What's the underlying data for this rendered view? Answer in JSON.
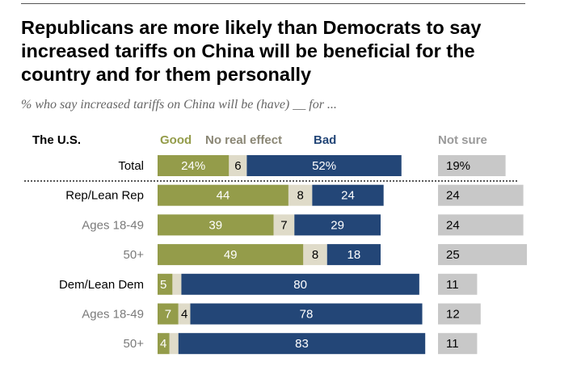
{
  "title": "Republicans are more likely than Democrats to say increased tariffs on China will be beneficial for the country and for them personally",
  "subtitle": "% who say increased tariffs on China will be (have) __ for ...",
  "colors": {
    "good": "#949c4a",
    "no_effect": "#dfdbc9",
    "bad": "#234677",
    "not_sure": "#c8c8c8",
    "muted_text": "#7a7a7a"
  },
  "chart_data": {
    "type": "bar",
    "subtype": "stacked-horizontal-diverging",
    "section_label": "The U.S.",
    "categories": [
      "Total",
      "Rep/Lean Rep",
      "Ages 18-49",
      "50+",
      "Dem/Lean Dem",
      "Ages 18-49",
      "50+"
    ],
    "category_style": [
      "plain",
      "group",
      "sub",
      "sub",
      "group",
      "sub",
      "sub"
    ],
    "value_labels": {
      "good": [
        "24%",
        "44",
        "39",
        "49",
        "5",
        "7",
        "4"
      ],
      "no_effect": [
        "6",
        "8",
        "7",
        "8",
        "",
        "4",
        ""
      ],
      "bad": [
        "52%",
        "24",
        "29",
        "18",
        "80",
        "78",
        "83"
      ],
      "not_sure": [
        "19%",
        "24",
        "24",
        "25",
        "11",
        "12",
        "11"
      ]
    },
    "series": [
      {
        "name": "Good",
        "values": [
          24,
          44,
          39,
          49,
          5,
          7,
          4
        ]
      },
      {
        "name": "No real effect",
        "values": [
          6,
          8,
          7,
          8,
          3,
          4,
          3
        ]
      },
      {
        "name": "Bad",
        "values": [
          52,
          24,
          29,
          18,
          80,
          78,
          83
        ]
      },
      {
        "name": "Not sure",
        "values": [
          19,
          24,
          24,
          25,
          11,
          12,
          11
        ]
      }
    ],
    "legend_placement": "top",
    "grid": false
  }
}
